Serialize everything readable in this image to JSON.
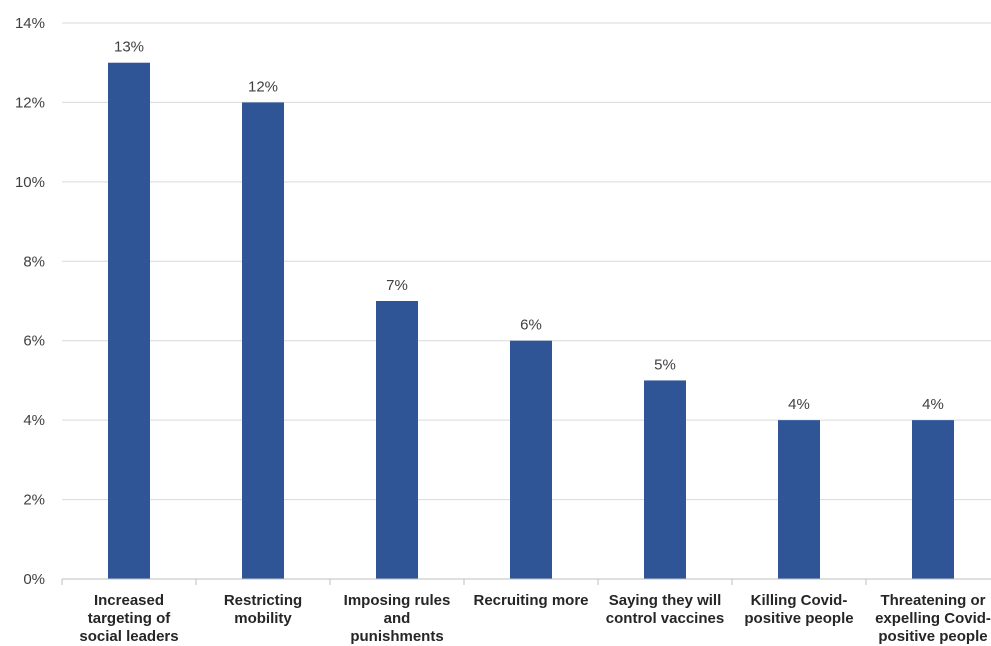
{
  "chart_data": {
    "type": "bar",
    "title": "",
    "xlabel": "",
    "ylabel": "",
    "categories": [
      [
        "Increased",
        "targeting of",
        "social leaders"
      ],
      [
        "Restricting",
        "mobility"
      ],
      [
        "Imposing rules",
        "and",
        "punishments"
      ],
      [
        "Recruiting more"
      ],
      [
        "Saying they will",
        "control vaccines"
      ],
      [
        "Killing Covid-",
        "positive people"
      ],
      [
        "Threatening or",
        "expelling Covid-",
        "positive people"
      ]
    ],
    "values": [
      13,
      12,
      7,
      6,
      5,
      4,
      4
    ],
    "data_labels": [
      "13%",
      "12%",
      "7%",
      "6%",
      "5%",
      "4%",
      "4%"
    ],
    "ylim": [
      0,
      14
    ],
    "y_ticks": [
      0,
      2,
      4,
      6,
      8,
      10,
      12,
      14
    ],
    "y_tick_labels": [
      "0%",
      "2%",
      "4%",
      "6%",
      "8%",
      "10%",
      "12%",
      "14%"
    ],
    "grid": true,
    "legend": "none",
    "bar_color": "#2f5597"
  }
}
